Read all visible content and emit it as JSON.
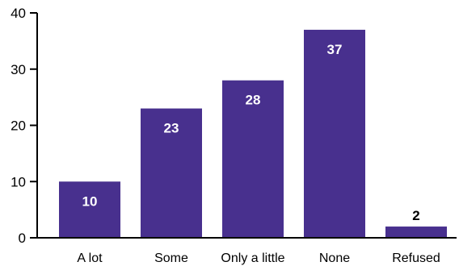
{
  "chart_data": {
    "type": "bar",
    "categories": [
      "A lot",
      "Some",
      "Only a little",
      "None",
      "Refused"
    ],
    "values": [
      10,
      23,
      28,
      37,
      2
    ],
    "data_labels": [
      "10",
      "23",
      "28",
      "37",
      "2"
    ],
    "title": "",
    "xlabel": "",
    "ylabel": "",
    "ylim": [
      0,
      40
    ],
    "yticks": [
      0,
      10,
      20,
      30,
      40
    ],
    "ytick_labels": [
      "0",
      "10",
      "20",
      "30",
      "40"
    ],
    "grid": false,
    "legend": "none",
    "bar_color": "#48308e",
    "label_inside_color": "#ffffff",
    "label_outside_color": "#000000",
    "axis_color": "#000000"
  }
}
